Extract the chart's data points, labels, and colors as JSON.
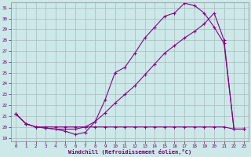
{
  "bg_color": "#cce8e8",
  "line_color": "#880088",
  "grid_color": "#aabbbb",
  "xlabel": "Windchill (Refroidissement éolien,°C)",
  "xlim_min": -0.5,
  "xlim_max": 23.5,
  "ylim_min": 18.7,
  "ylim_max": 31.5,
  "xticks": [
    0,
    1,
    2,
    3,
    4,
    5,
    6,
    7,
    8,
    9,
    10,
    11,
    12,
    13,
    14,
    15,
    16,
    17,
    18,
    19,
    20,
    21,
    22,
    23
  ],
  "yticks": [
    19,
    20,
    21,
    22,
    23,
    24,
    25,
    26,
    27,
    28,
    29,
    30,
    31
  ],
  "line1_x": [
    0,
    1,
    2,
    3,
    4,
    5,
    6,
    7,
    8,
    9,
    10,
    11,
    12,
    13,
    14,
    15,
    16,
    17,
    18,
    19,
    20,
    21,
    22,
    23
  ],
  "line1_y": [
    21.2,
    20.3,
    20.0,
    20.0,
    20.0,
    20.0,
    20.0,
    20.0,
    20.0,
    20.0,
    20.0,
    20.0,
    20.0,
    20.0,
    20.0,
    20.0,
    20.0,
    20.0,
    20.0,
    20.0,
    20.0,
    20.0,
    19.8,
    19.8
  ],
  "line2_x": [
    0,
    1,
    2,
    3,
    4,
    5,
    6,
    7,
    8,
    9,
    10,
    11,
    12,
    13,
    14,
    15,
    16,
    17,
    18,
    19,
    20,
    21,
    22,
    23
  ],
  "line2_y": [
    21.2,
    20.3,
    20.0,
    19.9,
    19.8,
    19.6,
    19.3,
    19.5,
    20.5,
    22.5,
    25.0,
    25.5,
    26.8,
    28.2,
    29.2,
    30.2,
    30.5,
    31.4,
    31.2,
    30.5,
    29.2,
    27.7,
    19.8,
    19.8
  ],
  "line3_x": [
    0,
    1,
    2,
    3,
    4,
    5,
    6,
    7,
    8,
    9,
    10,
    11,
    12,
    13,
    14,
    15,
    16,
    17,
    18,
    19,
    20,
    21,
    22,
    23
  ],
  "line3_y": [
    21.2,
    20.3,
    20.0,
    19.9,
    19.8,
    19.8,
    19.8,
    20.0,
    20.5,
    21.3,
    22.2,
    23.0,
    23.8,
    24.8,
    25.8,
    26.8,
    27.5,
    28.2,
    28.8,
    29.5,
    30.5,
    28.0,
    19.8,
    19.8
  ]
}
